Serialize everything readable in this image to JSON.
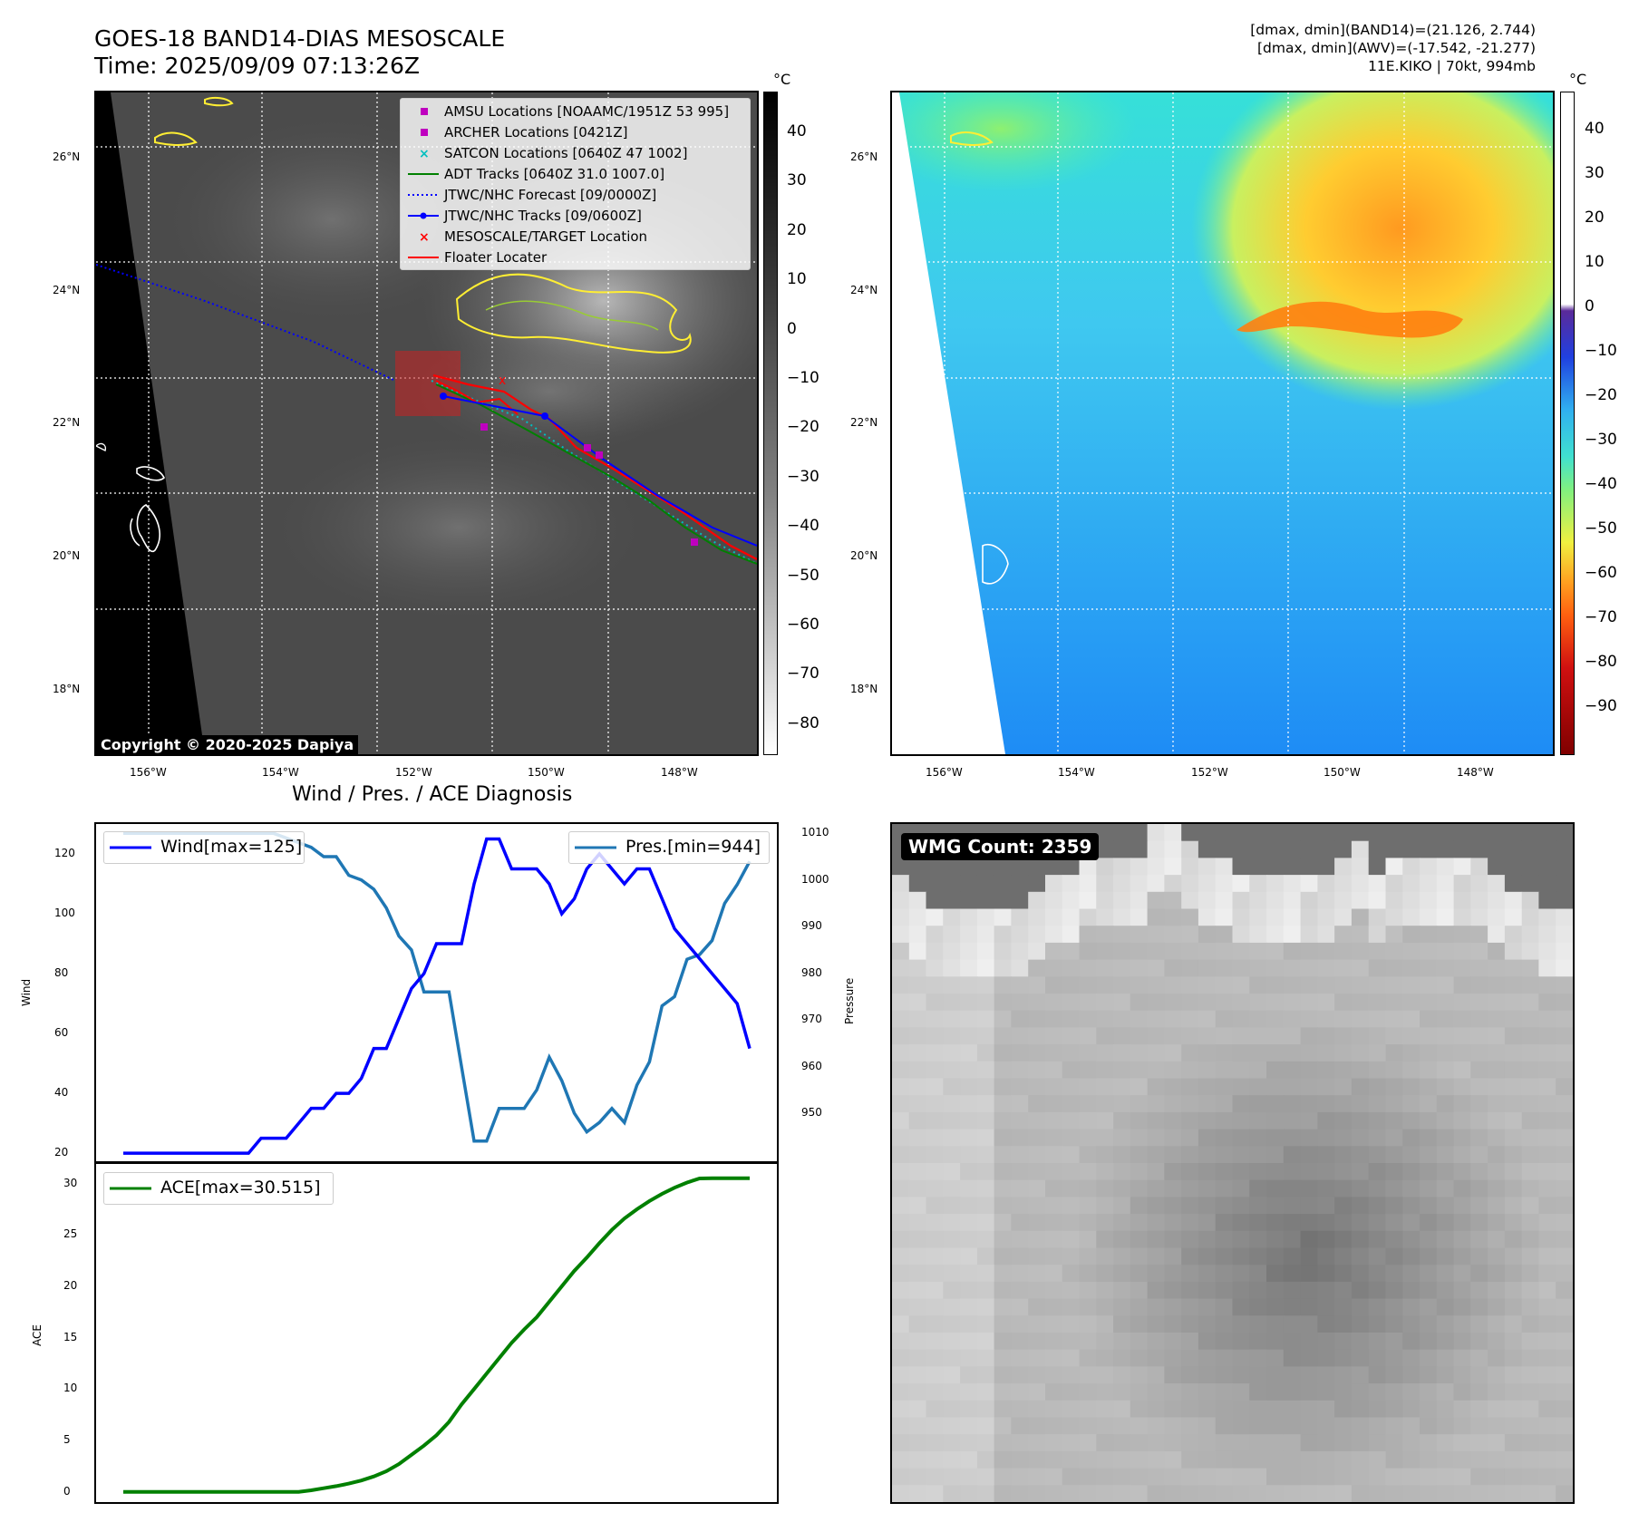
{
  "header": {
    "title_line1": "GOES-18 BAND14-DIAS MESOSCALE",
    "title_line2": "Time: 2025/09/09 07:13:26Z",
    "info_line1": "[dmax, dmin](BAND14)=(21.126, 2.744)",
    "info_line2": "[dmax, dmin](AWV)=(-17.542, -21.277)",
    "info_line3": "11E.KIKO | 70kt, 994mb"
  },
  "map": {
    "lat_ticks": [
      "26°N",
      "24°N",
      "22°N",
      "20°N",
      "18°N"
    ],
    "lon_ticks": [
      "156°W",
      "154°W",
      "152°W",
      "150°W",
      "148°W"
    ],
    "colorbar_unit": "°C",
    "gray_colorbar_ticks": [
      "40",
      "30",
      "20",
      "10",
      "0",
      "−10",
      "−20",
      "−30",
      "−40",
      "−50",
      "−60",
      "−70",
      "−80"
    ],
    "color_colorbar_ticks": [
      "40",
      "30",
      "20",
      "10",
      "0",
      "−10",
      "−20",
      "−30",
      "−40",
      "−50",
      "−60",
      "−70",
      "−80",
      "−90"
    ],
    "copyright": "Copyright © 2020-2025 Dapiya",
    "legend": [
      {
        "label": "AMSU Locations [NOAAMC/1951Z 53 995]",
        "marker": "square",
        "color": "#bf00bf"
      },
      {
        "label": "ARCHER Locations [0421Z]",
        "marker": "square",
        "color": "#bf00bf"
      },
      {
        "label": "SATCON Locations [0640Z 47 1002]",
        "marker": "x",
        "color": "#00bfbf"
      },
      {
        "label": "ADT Tracks [0640Z 31.0 1007.0]",
        "marker": "line",
        "color": "#008000"
      },
      {
        "label": "JTWC/NHC Forecast [09/0000Z]",
        "marker": "dotted",
        "color": "#0000ff"
      },
      {
        "label": "JTWC/NHC Tracks [09/0600Z]",
        "marker": "line-dot",
        "color": "#0000ff"
      },
      {
        "label": "MESOSCALE/TARGET Location",
        "marker": "x",
        "color": "#ff0000"
      },
      {
        "label": "Floater Locater",
        "marker": "line",
        "color": "#ff0000"
      }
    ],
    "colors": {
      "coast": "#ffffff",
      "cold_contour": "#ffee33",
      "track_red": "#ff0000",
      "track_blue": "#0000ff"
    }
  },
  "wmg": {
    "label": "WMG Count: 2359"
  },
  "chart_data": [
    {
      "type": "line",
      "title": "Wind / Pres. / ACE Diagnosis",
      "ylabel": "Wind",
      "y2label": "Pressure",
      "ylim": [
        17,
        130
      ],
      "y2lim": [
        939.5,
        1012
      ],
      "yticks": [
        20,
        40,
        60,
        80,
        100,
        120
      ],
      "y2ticks": [
        950,
        960,
        970,
        980,
        990,
        1000,
        1010
      ],
      "x": [
        0,
        1,
        2,
        3,
        4,
        5,
        6,
        7,
        8,
        9,
        10,
        11,
        12,
        13,
        14,
        15,
        16,
        17,
        18,
        19,
        20,
        21,
        22,
        23,
        24,
        25,
        26,
        27,
        28,
        29,
        30,
        31,
        32,
        33,
        34,
        35,
        36,
        37,
        38,
        39,
        40,
        41,
        42,
        43,
        44,
        45,
        46,
        47,
        48,
        49,
        50
      ],
      "series": [
        {
          "name": "Wind[max=125]",
          "axis": "left",
          "color": "#0000ff",
          "values": [
            20,
            20,
            20,
            20,
            20,
            20,
            20,
            20,
            20,
            20,
            20,
            25,
            25,
            25,
            30,
            35,
            35,
            40,
            40,
            45,
            55,
            55,
            65,
            75,
            80,
            90,
            90,
            90,
            110,
            125,
            125,
            115,
            115,
            115,
            110,
            100,
            105,
            115,
            120,
            115,
            110,
            115,
            115,
            105,
            95,
            90,
            85,
            80,
            75,
            70,
            55
          ]
        },
        {
          "name": "Pres.[min=944]",
          "axis": "right",
          "color": "#1f77b4",
          "values": [
            1010,
            1010,
            1010,
            1010,
            1010,
            1010,
            1010,
            1010,
            1010,
            1010,
            1010,
            1010,
            1010,
            1009,
            1008,
            1007,
            1005,
            1005,
            1001,
            1000,
            998,
            994,
            988,
            985,
            976,
            976,
            976,
            960,
            944,
            944,
            951,
            951,
            951,
            955,
            962,
            957,
            950,
            946,
            948,
            951,
            948,
            956,
            961,
            973,
            975,
            983,
            984,
            987,
            995,
            999,
            1004
          ]
        },
        {
          "name": "ACE[max=30.515]",
          "axis": "ace",
          "color": "#008000",
          "values": [
            0,
            0,
            0,
            0,
            0,
            0,
            0,
            0,
            0,
            0,
            0,
            0,
            0,
            0,
            0,
            0.15,
            0.35,
            0.55,
            0.8,
            1.1,
            1.5,
            2.0,
            2.7,
            3.6,
            4.5,
            5.5,
            6.8,
            8.5,
            10,
            11.5,
            13,
            14.5,
            15.8,
            17,
            18.5,
            20,
            21.5,
            22.8,
            24.2,
            25.5,
            26.6,
            27.5,
            28.3,
            29,
            29.6,
            30.1,
            30.5,
            30.515,
            30.515,
            30.515,
            30.515
          ]
        }
      ]
    },
    {
      "type": "line",
      "ylabel": "ACE",
      "ylim": [
        -1,
        32
      ],
      "yticks": [
        0,
        5,
        10,
        15,
        20,
        25,
        30
      ],
      "legend": "ACE[max=30.515]"
    }
  ]
}
